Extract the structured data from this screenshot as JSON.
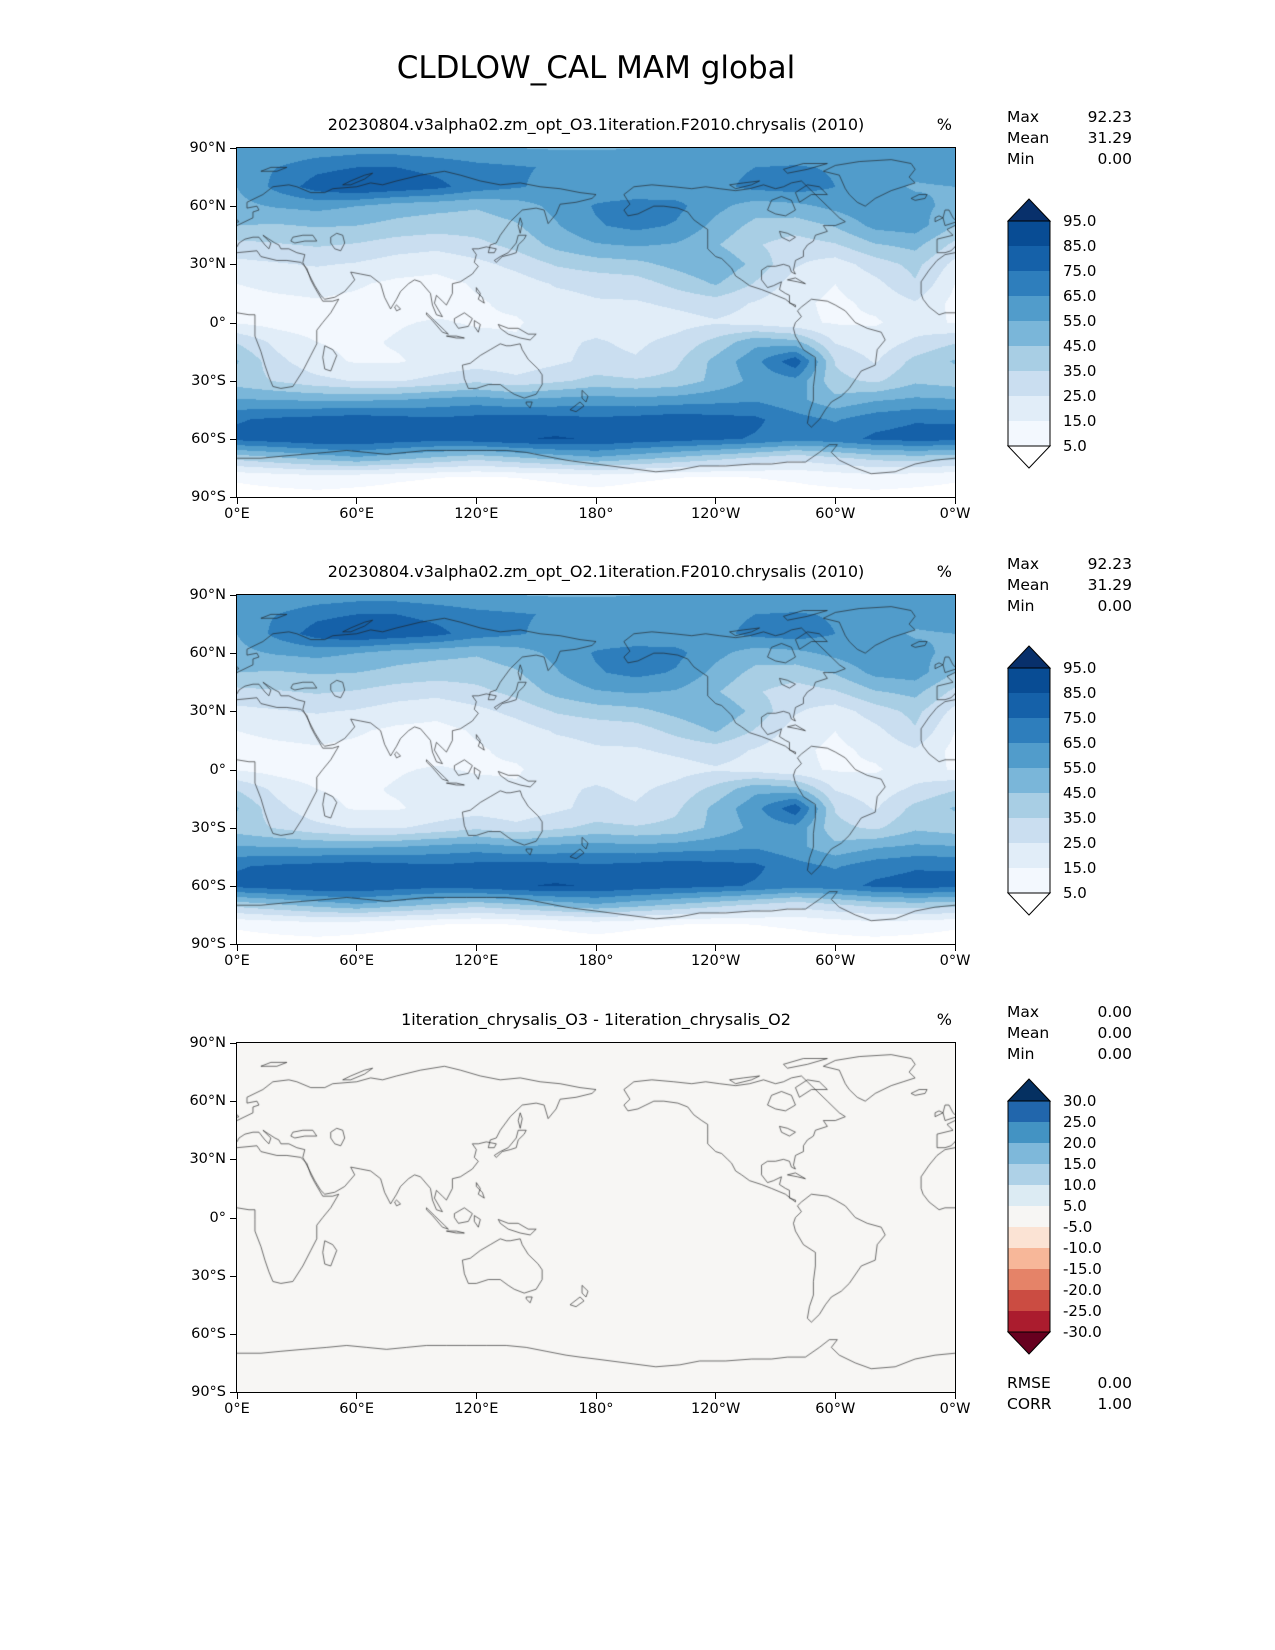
{
  "title": "CLDLOW_CAL MAM global",
  "panels": [
    {
      "subtitle": "20230804.v3alpha02.zm_opt_O3.1iteration.F2010.chrysalis (2010)",
      "units": "%",
      "field": "cldlow_percent",
      "colorbar": "blues",
      "stats": [
        {
          "label": "Max",
          "value": "92.23"
        },
        {
          "label": "Mean",
          "value": "31.29"
        },
        {
          "label": "Min",
          "value": "0.00"
        }
      ]
    },
    {
      "subtitle": "20230804.v3alpha02.zm_opt_O2.1iteration.F2010.chrysalis (2010)",
      "units": "%",
      "field": "cldlow_percent",
      "colorbar": "blues",
      "stats": [
        {
          "label": "Max",
          "value": "92.23"
        },
        {
          "label": "Mean",
          "value": "31.29"
        },
        {
          "label": "Min",
          "value": "0.00"
        }
      ]
    },
    {
      "subtitle": "1iteration_chrysalis_O3 - 1iteration_chrysalis_O2",
      "units": "%",
      "field": "difference_percent",
      "colorbar": "rdbu",
      "stats": [
        {
          "label": "Max",
          "value": "0.00"
        },
        {
          "label": "Mean",
          "value": "0.00"
        },
        {
          "label": "Min",
          "value": "0.00"
        }
      ],
      "stats2": [
        {
          "label": "RMSE",
          "value": "0.00"
        },
        {
          "label": "CORR",
          "value": "1.00"
        }
      ]
    }
  ],
  "axes": {
    "lat_ticks": [
      "90°N",
      "60°N",
      "30°N",
      "0°",
      "30°S",
      "60°S",
      "90°S"
    ],
    "lon_ticks": [
      "0°E",
      "60°E",
      "120°E",
      "180°",
      "120°W",
      "60°W",
      "0°W"
    ]
  },
  "colorbars": {
    "blues": {
      "levels": [
        5,
        15,
        25,
        35,
        45,
        55,
        65,
        75,
        85,
        95
      ],
      "labels": [
        "95.0",
        "85.0",
        "75.0",
        "65.0",
        "55.0",
        "45.0",
        "35.0",
        "25.0",
        "15.0",
        "5.0"
      ],
      "colors_low_to_high": [
        "#ffffff",
        "#f3f8fe",
        "#e1edf8",
        "#cadef0",
        "#a8cee4",
        "#7ab6d9",
        "#519ccb",
        "#2e7ebc",
        "#1561a9",
        "#084c94",
        "#08306b"
      ]
    },
    "rdbu": {
      "levels": [
        -30,
        -25,
        -20,
        -15,
        -10,
        -5,
        5,
        10,
        15,
        20,
        25,
        30
      ],
      "labels": [
        "30.0",
        "25.0",
        "20.0",
        "15.0",
        "10.0",
        "5.0",
        "-5.0",
        "-10.0",
        "-15.0",
        "-20.0",
        "-25.0",
        "-30.0"
      ],
      "colors_low_to_high": [
        "#67001f",
        "#ab1c2e",
        "#cb4c42",
        "#e58368",
        "#f7b799",
        "#fbe3d4",
        "#f7f6f4",
        "#dcebf3",
        "#aed1e7",
        "#7eb8da",
        "#4393c3",
        "#2166ac",
        "#053061"
      ]
    }
  },
  "chart_data": {
    "type": "heatmap",
    "subtype": "filled-contour global latitude-longitude maps (equirectangular)",
    "x": {
      "label": "longitude",
      "range": [
        0,
        360
      ],
      "ticks": [
        "0°E",
        "60°E",
        "120°E",
        "180°",
        "120°W",
        "60°W",
        "0°W"
      ]
    },
    "y": {
      "label": "latitude",
      "range": [
        90,
        -90
      ],
      "ticks": [
        "90°N",
        "60°N",
        "30°N",
        "0°",
        "30°S",
        "60°S",
        "90°S"
      ]
    },
    "grid": {
      "lon_start": 0,
      "lon_step": 20,
      "lat_start": 90,
      "lat_step": -10,
      "units": "%"
    },
    "fields": {
      "cldlow_percent": [
        [
          55,
          55,
          58,
          60,
          60,
          58,
          56,
          55,
          54,
          54,
          55,
          56,
          58,
          58,
          57,
          56,
          55,
          55,
          55
        ],
        [
          60,
          65,
          72,
          75,
          75,
          72,
          68,
          66,
          64,
          62,
          60,
          60,
          62,
          65,
          66,
          64,
          60,
          58,
          60
        ],
        [
          55,
          68,
          80,
          85,
          82,
          78,
          70,
          66,
          62,
          58,
          56,
          58,
          62,
          68,
          70,
          65,
          58,
          54,
          55
        ],
        [
          52,
          56,
          58,
          55,
          50,
          48,
          46,
          50,
          58,
          66,
          70,
          68,
          58,
          50,
          52,
          58,
          64,
          58,
          52
        ],
        [
          45,
          44,
          46,
          45,
          42,
          40,
          40,
          44,
          54,
          64,
          68,
          64,
          52,
          42,
          40,
          46,
          58,
          60,
          45
        ],
        [
          32,
          34,
          36,
          34,
          30,
          28,
          32,
          38,
          48,
          54,
          56,
          54,
          46,
          36,
          30,
          34,
          44,
          48,
          32
        ],
        [
          22,
          24,
          26,
          24,
          20,
          18,
          22,
          28,
          36,
          40,
          42,
          48,
          54,
          42,
          26,
          20,
          30,
          38,
          22
        ],
        [
          15,
          17,
          18,
          16,
          13,
          12,
          16,
          20,
          26,
          28,
          30,
          38,
          46,
          34,
          20,
          15,
          22,
          34,
          15
        ],
        [
          12,
          13,
          14,
          13,
          11,
          11,
          14,
          17,
          21,
          24,
          24,
          27,
          30,
          24,
          17,
          13,
          17,
          24,
          12
        ],
        [
          14,
          11,
          9,
          11,
          14,
          16,
          14,
          14,
          19,
          21,
          19,
          21,
          24,
          21,
          17,
          14,
          14,
          19,
          14
        ],
        [
          34,
          22,
          15,
          13,
          16,
          20,
          18,
          16,
          23,
          26,
          23,
          28,
          38,
          52,
          48,
          24,
          19,
          27,
          34
        ],
        [
          46,
          28,
          18,
          14,
          14,
          18,
          20,
          18,
          23,
          28,
          26,
          33,
          48,
          62,
          82,
          34,
          24,
          38,
          46
        ],
        [
          40,
          34,
          28,
          24,
          24,
          28,
          33,
          28,
          33,
          38,
          36,
          38,
          48,
          58,
          62,
          38,
          33,
          43,
          40
        ],
        [
          56,
          55,
          54,
          54,
          55,
          58,
          60,
          56,
          58,
          60,
          58,
          60,
          62,
          64,
          58,
          48,
          54,
          57,
          56
        ],
        [
          74,
          77,
          79,
          81,
          79,
          77,
          79,
          81,
          79,
          77,
          79,
          81,
          79,
          77,
          69,
          64,
          71,
          74,
          74
        ],
        [
          78,
          81,
          84,
          84,
          81,
          79,
          81,
          84,
          86,
          84,
          81,
          79,
          77,
          74,
          69,
          71,
          77,
          79,
          78
        ],
        [
          38,
          43,
          48,
          53,
          48,
          43,
          38,
          43,
          48,
          53,
          48,
          43,
          38,
          33,
          28,
          33,
          38,
          40,
          38
        ],
        [
          6,
          8,
          10,
          8,
          6,
          5,
          4,
          5,
          6,
          8,
          6,
          5,
          4,
          5,
          6,
          8,
          10,
          8,
          6
        ],
        [
          2,
          2,
          2,
          2,
          2,
          2,
          2,
          2,
          2,
          2,
          2,
          2,
          2,
          2,
          2,
          2,
          2,
          2,
          2
        ]
      ],
      "difference_percent": 0
    },
    "panels": [
      {
        "title": "20230804.v3alpha02.zm_opt_O3.1iteration.F2010.chrysalis (2010)",
        "field": "cldlow_percent",
        "units": "%",
        "levels": [
          5,
          15,
          25,
          35,
          45,
          55,
          65,
          75,
          85,
          95
        ],
        "max": 92.23,
        "mean": 31.29,
        "min": 0.0
      },
      {
        "title": "20230804.v3alpha02.zm_opt_O2.1iteration.F2010.chrysalis (2010)",
        "field": "cldlow_percent",
        "units": "%",
        "levels": [
          5,
          15,
          25,
          35,
          45,
          55,
          65,
          75,
          85,
          95
        ],
        "max": 92.23,
        "mean": 31.29,
        "min": 0.0
      },
      {
        "title": "1iteration_chrysalis_O3 - 1iteration_chrysalis_O2",
        "field": "difference_percent",
        "units": "%",
        "levels": [
          -30,
          -25,
          -20,
          -15,
          -10,
          -5,
          5,
          10,
          15,
          20,
          25,
          30
        ],
        "max": 0.0,
        "mean": 0.0,
        "min": 0.0,
        "rmse": 0.0,
        "corr": 1.0
      }
    ]
  }
}
